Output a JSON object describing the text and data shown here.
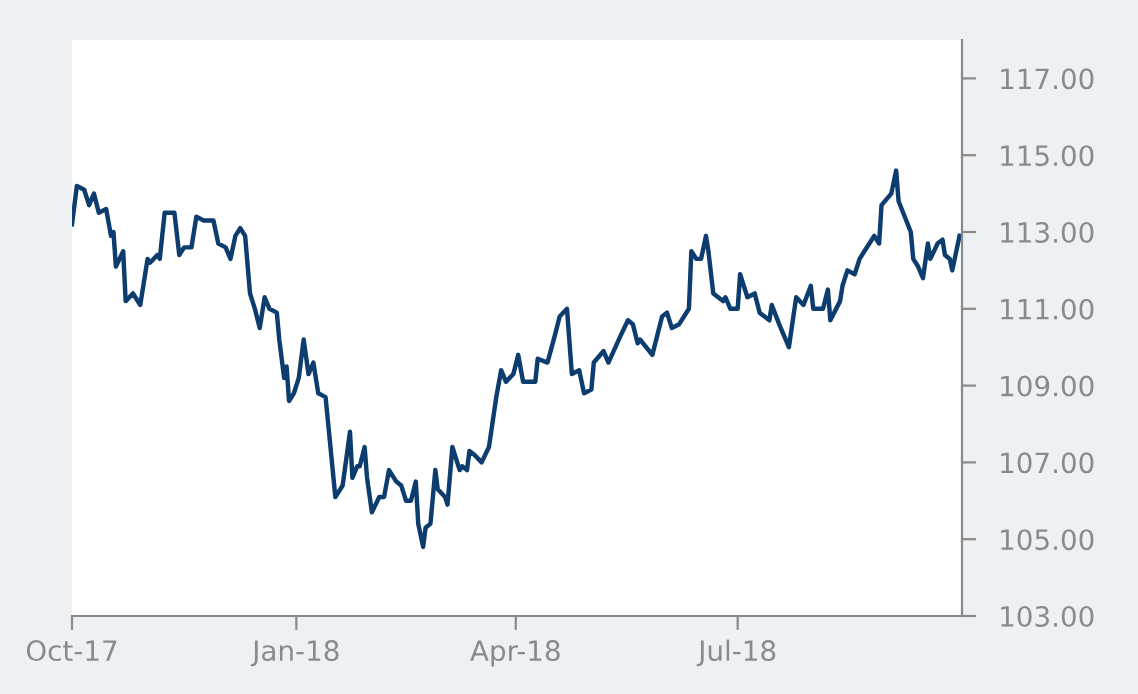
{
  "chart_data": {
    "type": "line",
    "x": [
      "2017-10-01",
      "2017-10-03",
      "2017-10-06",
      "2017-10-08",
      "2017-10-10",
      "2017-10-12",
      "2017-10-15",
      "2017-10-17",
      "2017-10-18",
      "2017-10-19",
      "2017-10-22",
      "2017-10-23",
      "2017-10-26",
      "2017-10-29",
      "2017-11-01",
      "2017-11-02",
      "2017-11-05",
      "2017-11-06",
      "2017-11-08",
      "2017-11-12",
      "2017-11-14",
      "2017-11-16",
      "2017-11-19",
      "2017-11-21",
      "2017-11-24",
      "2017-11-28",
      "2017-11-30",
      "2017-12-03",
      "2017-12-05",
      "2017-12-07",
      "2017-12-09",
      "2017-12-11",
      "2017-12-13",
      "2017-12-15",
      "2017-12-17",
      "2017-12-19",
      "2017-12-21",
      "2017-12-24",
      "2017-12-25",
      "2017-12-27",
      "2017-12-28",
      "2017-12-29",
      "2017-12-31",
      "2018-01-02",
      "2018-01-04",
      "2018-01-06",
      "2018-01-08",
      "2018-01-10",
      "2018-01-13",
      "2018-01-17",
      "2018-01-20",
      "2018-01-23",
      "2018-01-24",
      "2018-01-26",
      "2018-01-27",
      "2018-01-29",
      "2018-01-30",
      "2018-02-01",
      "2018-02-04",
      "2018-02-06",
      "2018-02-08",
      "2018-02-11",
      "2018-02-13",
      "2018-02-15",
      "2018-02-17",
      "2018-02-19",
      "2018-02-20",
      "2018-02-22",
      "2018-02-23",
      "2018-02-25",
      "2018-02-27",
      "2018-02-28",
      "2018-03-03",
      "2018-03-04",
      "2018-03-06",
      "2018-03-09",
      "2018-03-10",
      "2018-03-12",
      "2018-03-13",
      "2018-03-15",
      "2018-03-18",
      "2018-03-21",
      "2018-03-24",
      "2018-03-26",
      "2018-03-28",
      "2018-03-31",
      "2018-04-02",
      "2018-04-04",
      "2018-04-09",
      "2018-04-10",
      "2018-04-14",
      "2018-04-17",
      "2018-04-19",
      "2018-04-22",
      "2018-04-24",
      "2018-04-27",
      "2018-04-29",
      "2018-05-02",
      "2018-05-03",
      "2018-05-07",
      "2018-05-09",
      "2018-05-14",
      "2018-05-17",
      "2018-05-19",
      "2018-05-21",
      "2018-05-22",
      "2018-05-27",
      "2018-05-31",
      "2018-06-02",
      "2018-06-04",
      "2018-06-07",
      "2018-06-11",
      "2018-06-12",
      "2018-06-14",
      "2018-06-16",
      "2018-06-18",
      "2018-06-19",
      "2018-06-21",
      "2018-06-23",
      "2018-06-25",
      "2018-06-26",
      "2018-06-28",
      "2018-07-01",
      "2018-07-02",
      "2018-07-05",
      "2018-07-08",
      "2018-07-10",
      "2018-07-14",
      "2018-07-15",
      "2018-07-18",
      "2018-07-22",
      "2018-07-25",
      "2018-07-28",
      "2018-07-31",
      "2018-08-01",
      "2018-08-05",
      "2018-08-07",
      "2018-08-08",
      "2018-08-12",
      "2018-08-13",
      "2018-08-15",
      "2018-08-18",
      "2018-08-20",
      "2018-08-24",
      "2018-08-26",
      "2018-08-28",
      "2018-08-29",
      "2018-09-02",
      "2018-09-04",
      "2018-09-05",
      "2018-09-10",
      "2018-09-11",
      "2018-09-13",
      "2018-09-15",
      "2018-09-17",
      "2018-09-18",
      "2018-09-21",
      "2018-09-23",
      "2018-09-24",
      "2018-09-26",
      "2018-09-27",
      "2018-09-28",
      "2018-09-30"
    ],
    "series": [
      {
        "color": "#0d3d6e",
        "values": [
          113.2,
          114.2,
          114.1,
          113.7,
          114.0,
          113.5,
          113.6,
          112.9,
          113.0,
          112.1,
          112.5,
          111.2,
          111.4,
          111.1,
          112.3,
          112.2,
          112.4,
          112.3,
          113.5,
          113.5,
          112.4,
          112.6,
          112.6,
          113.4,
          113.3,
          113.3,
          112.7,
          112.6,
          112.3,
          112.9,
          113.1,
          112.9,
          111.4,
          111.0,
          110.5,
          111.3,
          111.0,
          110.9,
          110.2,
          109.2,
          109.5,
          108.6,
          108.8,
          109.2,
          110.2,
          109.3,
          109.6,
          108.8,
          108.7,
          106.1,
          106.4,
          107.8,
          106.6,
          106.9,
          106.9,
          107.4,
          106.6,
          105.7,
          106.1,
          106.1,
          106.8,
          106.5,
          106.4,
          106.0,
          106.0,
          106.5,
          105.4,
          104.8,
          105.3,
          105.4,
          106.8,
          106.3,
          106.1,
          105.9,
          107.4,
          106.8,
          106.9,
          106.8,
          107.3,
          107.2,
          107.0,
          107.4,
          108.7,
          109.4,
          109.1,
          109.3,
          109.8,
          109.1,
          109.1,
          109.7,
          109.6,
          110.3,
          110.8,
          111.0,
          109.3,
          109.4,
          108.8,
          108.9,
          109.6,
          109.9,
          109.6,
          110.3,
          110.7,
          110.6,
          110.1,
          110.2,
          109.8,
          110.8,
          110.9,
          110.5,
          110.6,
          111.0,
          112.5,
          112.3,
          112.3,
          112.9,
          112.5,
          111.4,
          111.3,
          111.2,
          111.3,
          111.0,
          111.0,
          111.9,
          111.3,
          111.4,
          110.9,
          110.7,
          111.1,
          110.6,
          110.0,
          111.3,
          111.1,
          111.6,
          111.0,
          111.0,
          111.5,
          110.7,
          111.2,
          111.6,
          112.0,
          111.9,
          112.3,
          112.7,
          112.9,
          112.7,
          113.7,
          114.0,
          114.6,
          113.8,
          113.0,
          112.3,
          112.1,
          111.8,
          112.7,
          112.3,
          112.7,
          112.8,
          112.4,
          112.3,
          112.0,
          112.3,
          112.9
        ]
      }
    ],
    "xlim": [
      "2017-10-01",
      "2018-10-01"
    ],
    "xticks": [
      {
        "value": "2017-10-01",
        "label": "Oct-17"
      },
      {
        "value": "2018-01-01",
        "label": "Jan-18"
      },
      {
        "value": "2018-04-01",
        "label": "Apr-18"
      },
      {
        "value": "2018-07-01",
        "label": "Jul-18"
      }
    ],
    "ylim": [
      103,
      118
    ],
    "yticks": [
      {
        "value": 103,
        "label": "103.00"
      },
      {
        "value": 105,
        "label": "105.00"
      },
      {
        "value": 107,
        "label": "107.00"
      },
      {
        "value": 109,
        "label": "109.00"
      },
      {
        "value": 111,
        "label": "111.00"
      },
      {
        "value": 113,
        "label": "113.00"
      },
      {
        "value": 115,
        "label": "115.00"
      },
      {
        "value": 117,
        "label": "117.00"
      }
    ],
    "grid": false,
    "marker": "none",
    "line_style": "solid"
  }
}
